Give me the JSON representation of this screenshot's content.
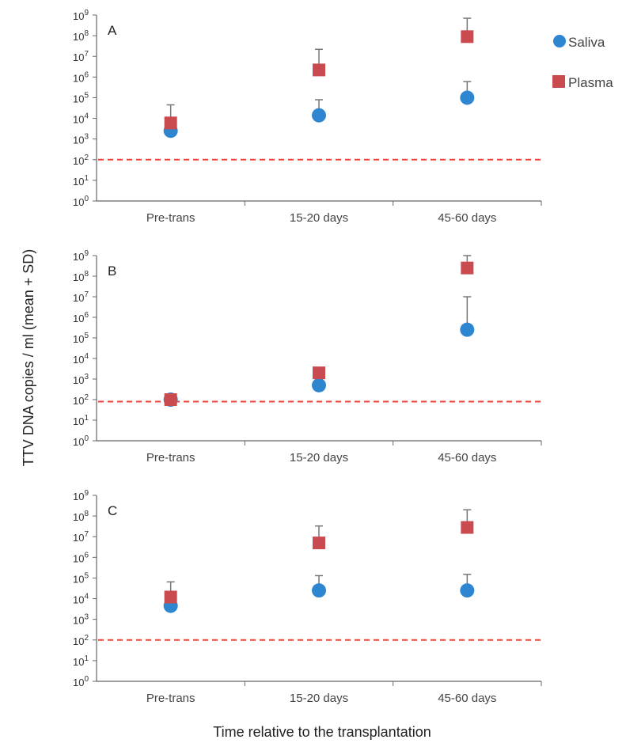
{
  "chart_data": {
    "type": "scatter",
    "ylabel": "TTV DNA  copies / ml (mean + SD)",
    "xlabel": "Time relative to the transplantation",
    "yscale": "log",
    "ylim": [
      1,
      1000000000
    ],
    "yticks": [
      {
        "base": "10",
        "exp": "0"
      },
      {
        "base": "10",
        "exp": "1"
      },
      {
        "base": "10",
        "exp": "2"
      },
      {
        "base": "10",
        "exp": "3"
      },
      {
        "base": "10",
        "exp": "4"
      },
      {
        "base": "10",
        "exp": "5"
      },
      {
        "base": "10",
        "exp": "6"
      },
      {
        "base": "10",
        "exp": "7"
      },
      {
        "base": "10",
        "exp": "8"
      },
      {
        "base": "10",
        "exp": "9"
      }
    ],
    "categories": [
      "Pre-trans",
      "15-20 days",
      "45-60 days"
    ],
    "legend": {
      "position": "top-right",
      "entries": [
        {
          "name": "Saliva",
          "marker": "circle",
          "color": "#2e86d1"
        },
        {
          "name": "Plasma",
          "marker": "square",
          "color": "#c94a4f"
        }
      ]
    },
    "threshold_color": "#e8453c",
    "panels": [
      {
        "label": "A",
        "threshold": 100,
        "series": [
          {
            "name": "Saliva",
            "values": [
              2500,
              14000,
              100000
            ],
            "sd_upper": [
              null,
              80000,
              600000
            ]
          },
          {
            "name": "Plasma",
            "values": [
              6000,
              2200000,
              90000000
            ],
            "sd_upper": [
              45000,
              22000000,
              700000000
            ]
          }
        ]
      },
      {
        "label": "B",
        "threshold": 80,
        "series": [
          {
            "name": "Saliva",
            "values": [
              100,
              500,
              250000
            ],
            "sd_upper": [
              null,
              null,
              10000000
            ]
          },
          {
            "name": "Plasma",
            "values": [
              100,
              2000,
              250000000
            ],
            "sd_upper": [
              null,
              3500,
              1000000000
            ]
          }
        ]
      },
      {
        "label": "C",
        "threshold": 100,
        "series": [
          {
            "name": "Saliva",
            "values": [
              4500,
              25000,
              25000
            ],
            "sd_upper": [
              null,
              130000,
              150000
            ]
          },
          {
            "name": "Plasma",
            "values": [
              12000,
              5000000,
              28000000
            ],
            "sd_upper": [
              65000,
              33000000,
              200000000
            ]
          }
        ]
      }
    ]
  }
}
